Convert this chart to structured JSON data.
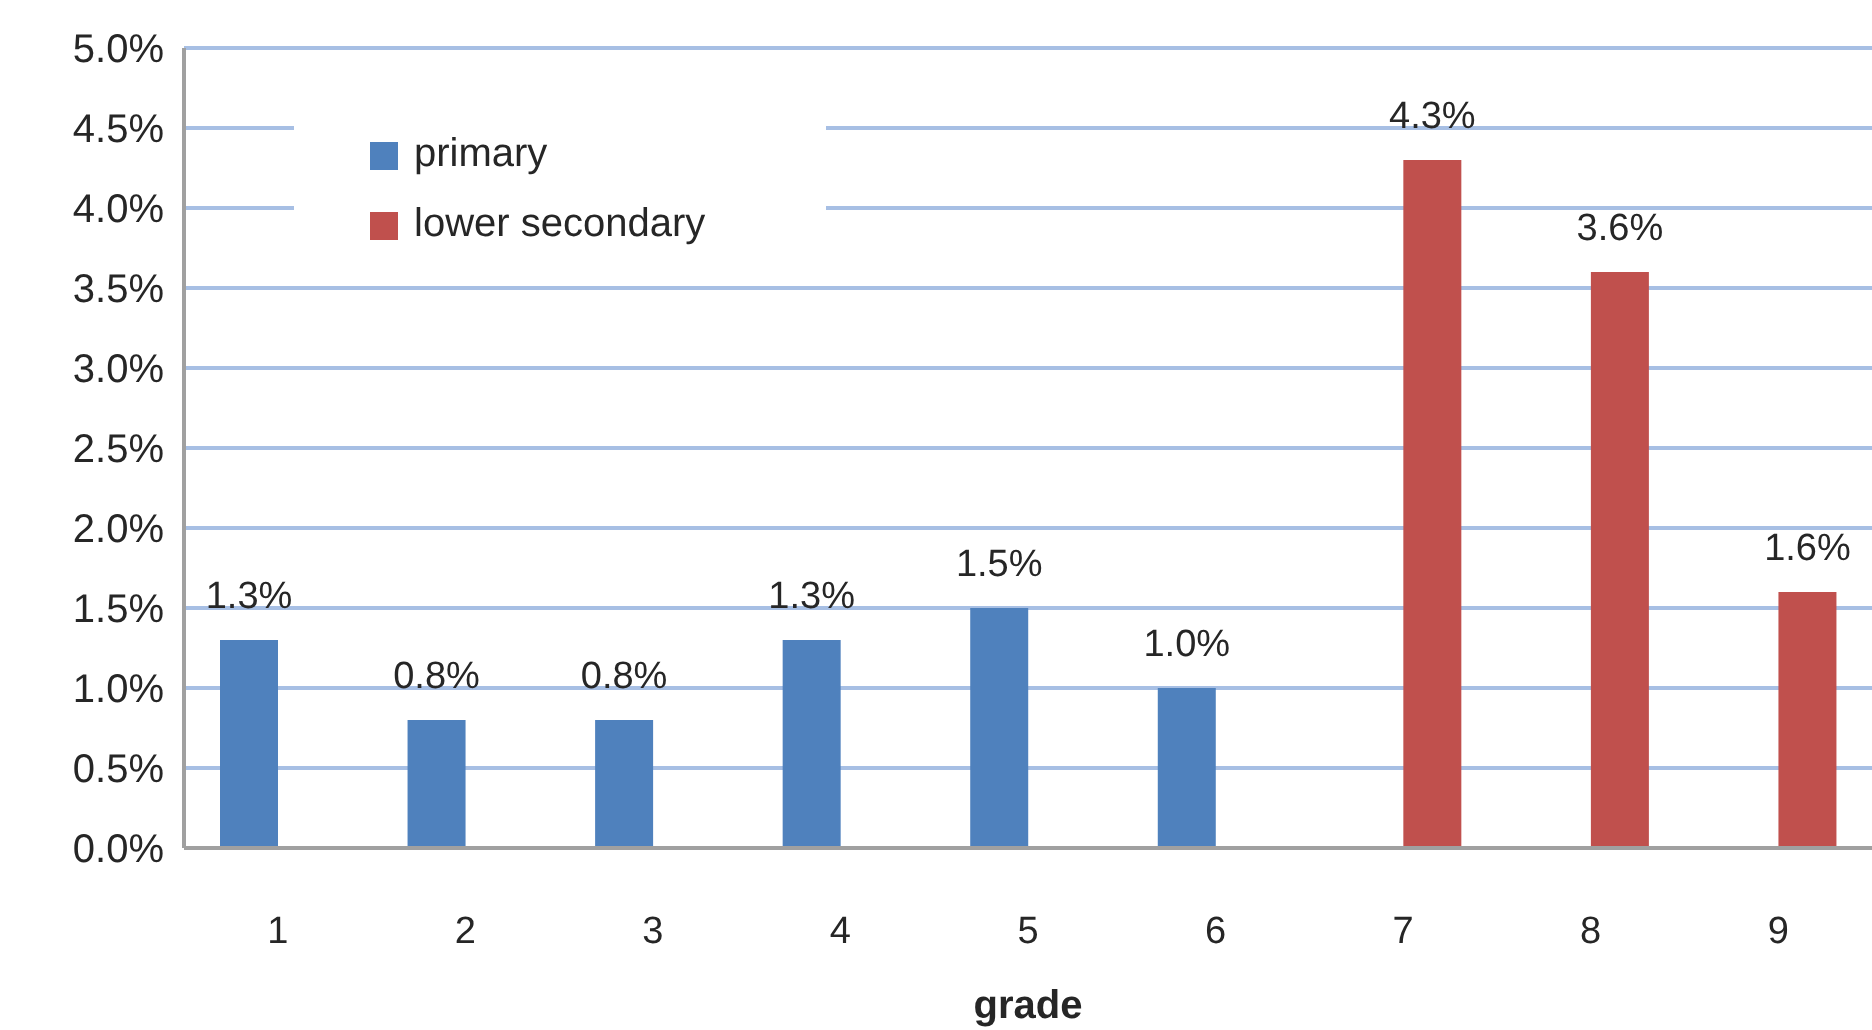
{
  "chart_data": {
    "type": "bar",
    "xlabel": "grade",
    "categories": [
      "1",
      "2",
      "3",
      "4",
      "5",
      "6",
      "7",
      "8",
      "9"
    ],
    "series": [
      {
        "name": "primary",
        "color": "#4f81bd",
        "values": [
          1.3,
          0.8,
          0.8,
          1.3,
          1.5,
          1.0,
          null,
          null,
          null
        ],
        "value_labels": [
          "1.3%",
          "0.8%",
          "0.8%",
          "1.3%",
          "1.5%",
          "1.0%",
          null,
          null,
          null
        ]
      },
      {
        "name": "lower secondary",
        "color": "#c0504d",
        "values": [
          null,
          null,
          null,
          null,
          null,
          null,
          4.3,
          3.6,
          1.6
        ],
        "value_labels": [
          null,
          null,
          null,
          null,
          null,
          null,
          "4.3%",
          "3.6%",
          "1.6%"
        ]
      }
    ],
    "ylim": [
      0,
      5
    ],
    "yticks": [
      {
        "value": 0,
        "label": "0.0%"
      },
      {
        "value": 0.5,
        "label": "0.5%"
      },
      {
        "value": 1,
        "label": "1.0%"
      },
      {
        "value": 1.5,
        "label": "1.5%"
      },
      {
        "value": 2,
        "label": "2.0%"
      },
      {
        "value": 2.5,
        "label": "2.5%"
      },
      {
        "value": 3,
        "label": "3.0%"
      },
      {
        "value": 3.5,
        "label": "3.5%"
      },
      {
        "value": 4,
        "label": "4.0%"
      },
      {
        "value": 4.5,
        "label": "4.5%"
      },
      {
        "value": 5,
        "label": "5.0%"
      }
    ],
    "grid": "y",
    "legend": "top left"
  }
}
